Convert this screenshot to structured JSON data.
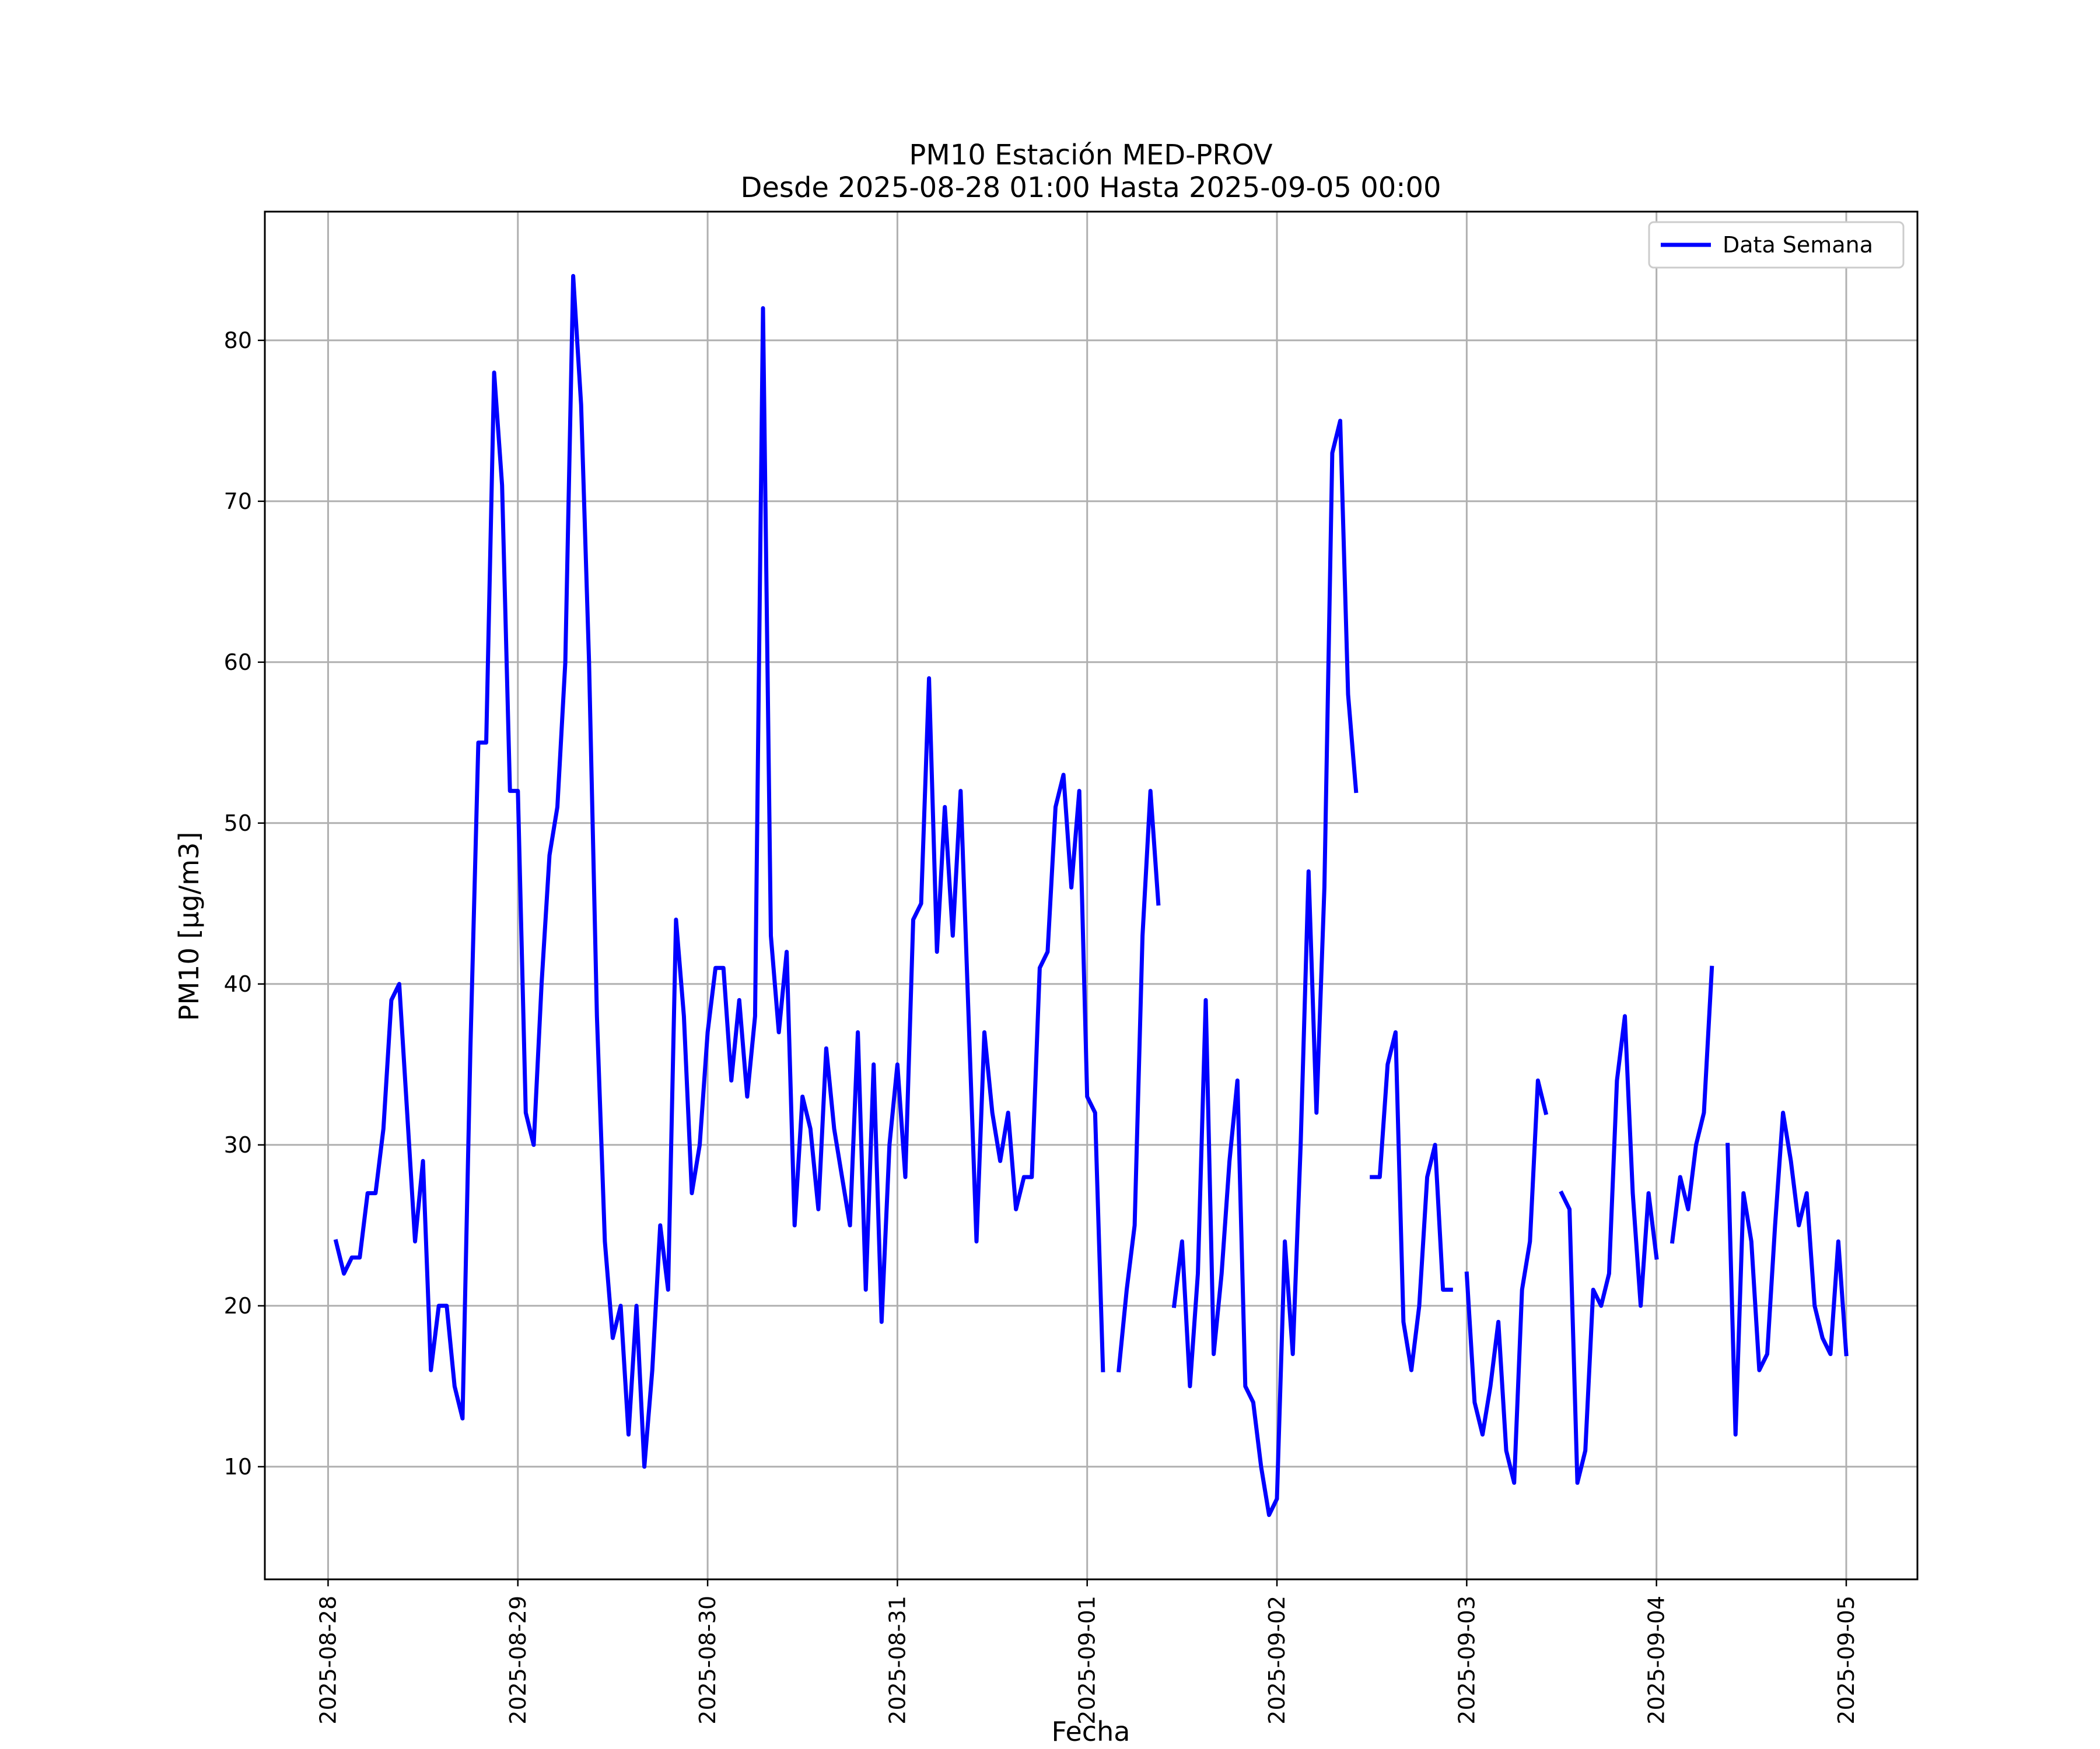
{
  "chart_data": {
    "type": "line",
    "title": "PM10 Estación MED-PROV",
    "subtitle": "Desde 2025-08-28 01:00 Hasta 2025-09-05 00:00",
    "xlabel": "Fecha",
    "ylabel": "PM10 [μg/m3]",
    "x_start": "2025-08-28 01:00",
    "x_step_hours": 1,
    "xlim": [
      "2025-08-27 16:00",
      "2025-09-05 09:00"
    ],
    "ylim": [
      3,
      88
    ],
    "x_ticks": [
      "2025-08-28",
      "2025-08-29",
      "2025-08-30",
      "2025-08-31",
      "2025-09-01",
      "2025-09-02",
      "2025-09-03",
      "2025-09-04",
      "2025-09-05"
    ],
    "y_ticks": [
      10,
      20,
      30,
      40,
      50,
      60,
      70,
      80
    ],
    "grid": true,
    "legend_position": "top-right",
    "series": [
      {
        "name": "Data Semana",
        "color": "#0000ff",
        "values": [
          24,
          22,
          23,
          23,
          27,
          27,
          31,
          39,
          40,
          32,
          24,
          29,
          16,
          20,
          20,
          15,
          13,
          36,
          55,
          55,
          78,
          71,
          52,
          52,
          32,
          30,
          40,
          48,
          51,
          60,
          84,
          76,
          60,
          38,
          24,
          18,
          20,
          12,
          20,
          10,
          16,
          25,
          21,
          44,
          38,
          27,
          30,
          37,
          41,
          41,
          34,
          39,
          33,
          38,
          82,
          43,
          37,
          42,
          25,
          33,
          31,
          26,
          36,
          31,
          28,
          25,
          37,
          21,
          35,
          19,
          30,
          35,
          28,
          44,
          45,
          59,
          42,
          51,
          43,
          52,
          38,
          24,
          37,
          32,
          29,
          32,
          26,
          28,
          28,
          41,
          42,
          51,
          53,
          46,
          52,
          33,
          32,
          16,
          null,
          16,
          21,
          25,
          43,
          52,
          45,
          null,
          20,
          24,
          15,
          22,
          39,
          17,
          22,
          29,
          34,
          15,
          14,
          10,
          7,
          8,
          24,
          17,
          30,
          47,
          32,
          46,
          73,
          75,
          58,
          52,
          null,
          28,
          28,
          35,
          37,
          19,
          16,
          20,
          28,
          30,
          21,
          21,
          null,
          22,
          14,
          12,
          15,
          19,
          11,
          9,
          21,
          24,
          34,
          32,
          null,
          27,
          26,
          9,
          11,
          21,
          20,
          22,
          34,
          38,
          27,
          20,
          27,
          23,
          null,
          24,
          28,
          26,
          30,
          32,
          41,
          null,
          30,
          12,
          27,
          24,
          16,
          17,
          25,
          32,
          29,
          25,
          27,
          20,
          18,
          17,
          24,
          17
        ]
      }
    ]
  }
}
